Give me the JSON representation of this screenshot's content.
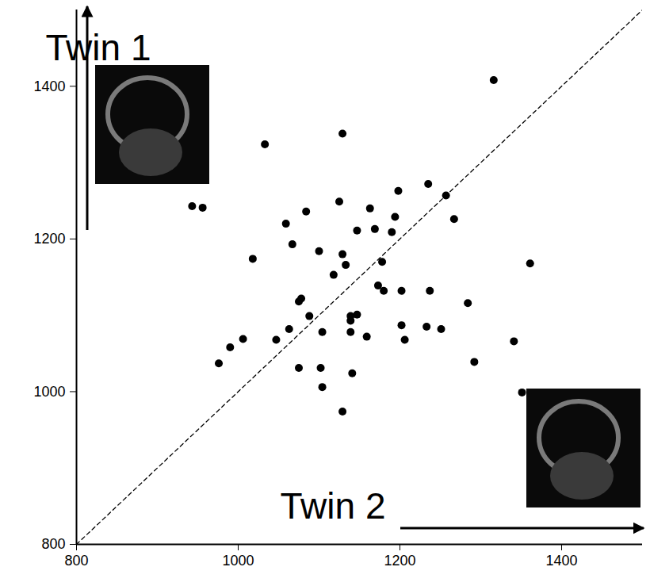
{
  "chart_data": {
    "type": "scatter",
    "x_label": "Twin 2",
    "y_label": "Twin 1",
    "xlim": [
      800,
      1500
    ],
    "ylim": [
      800,
      1500
    ],
    "xticks": [
      800,
      1000,
      1200,
      1400
    ],
    "yticks": [
      800,
      1000,
      1200,
      1400
    ],
    "grid": false,
    "series": [
      {
        "type": "scatter",
        "marker": "circle",
        "color": "#000000",
        "x": [
          1316,
          1033,
          1129,
          943,
          956,
          1018,
          1059,
          1084,
          1125,
          1067,
          1100,
          1129,
          1133,
          1118,
          1147,
          1163,
          1169,
          1190,
          1194,
          1198,
          1235,
          1257,
          1267,
          1178,
          1173,
          1180,
          1202,
          1237,
          1361,
          1284,
          1075,
          1078,
          1088,
          1139,
          1147,
          1139,
          1006,
          1047,
          1063,
          1104,
          1139,
          1159,
          1202,
          1206,
          1233,
          1251,
          1341,
          990,
          976,
          1075,
          1102,
          1104,
          1141,
          1129,
          1292,
          1351
        ],
        "values": [
          1408,
          1324,
          1338,
          1243,
          1241,
          1174,
          1220,
          1236,
          1249,
          1193,
          1184,
          1180,
          1166,
          1153,
          1211,
          1240,
          1213,
          1209,
          1229,
          1263,
          1272,
          1257,
          1226,
          1170,
          1139,
          1132,
          1132,
          1132,
          1168,
          1116,
          1118,
          1122,
          1099,
          1099,
          1101,
          1093,
          1069,
          1068,
          1082,
          1078,
          1078,
          1072,
          1087,
          1068,
          1085,
          1082,
          1066,
          1058,
          1037,
          1031,
          1031,
          1006,
          1024,
          974,
          1039,
          999
        ]
      },
      {
        "type": "line",
        "line_style": "dashed",
        "color": "#000000",
        "x": [
          800,
          1500
        ],
        "values": [
          800,
          1500
        ]
      }
    ]
  }
}
